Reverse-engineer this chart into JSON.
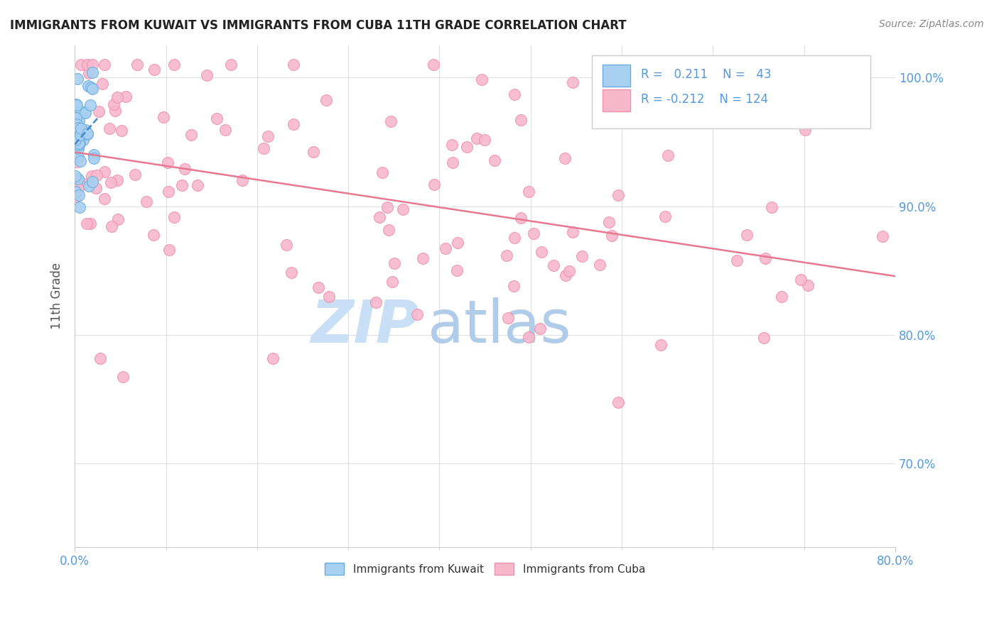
{
  "title": "IMMIGRANTS FROM KUWAIT VS IMMIGRANTS FROM CUBA 11TH GRADE CORRELATION CHART",
  "source": "Source: ZipAtlas.com",
  "ylabel": "11th Grade",
  "yaxis_ticks": [
    "70.0%",
    "80.0%",
    "90.0%",
    "100.0%"
  ],
  "yaxis_values": [
    0.7,
    0.8,
    0.9,
    1.0
  ],
  "xaxis_range": [
    0.0,
    0.8
  ],
  "yaxis_range": [
    0.635,
    1.025
  ],
  "legend_r_kuwait": "0.211",
  "legend_n_kuwait": "43",
  "legend_r_cuba": "-0.212",
  "legend_n_cuba": "124",
  "kuwait_color": "#a8d0f0",
  "cuba_color": "#f7b8cc",
  "kuwait_edge": "#6aaee0",
  "cuba_edge": "#f090b0",
  "trend_kuwait_color": "#4488cc",
  "trend_cuba_color": "#e87890",
  "watermark_zip": "ZIP",
  "watermark_atlas": "atlas",
  "watermark_color_zip": "#c8dff5",
  "watermark_color_atlas": "#b0cce8",
  "background": "#ffffff",
  "legend_box_color": "#ffffff",
  "legend_border_color": "#cccccc",
  "title_color": "#222222",
  "axis_label_color": "#5599dd",
  "ylabel_color": "#555555",
  "source_color": "#888888",
  "grid_color": "#e0e0e0",
  "tick_color": "#5599dd"
}
